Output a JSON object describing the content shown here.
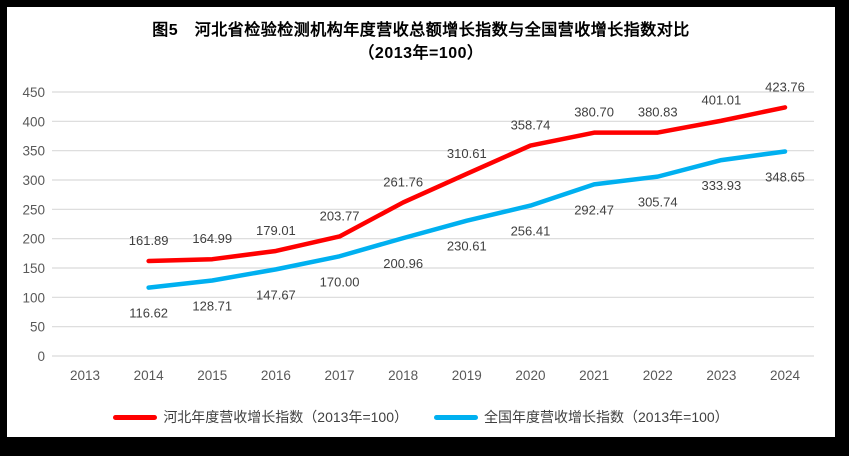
{
  "chart": {
    "title_line1": "图5　河北省检验检测机构年度营收总额增长指数与全国营收增长指数对比",
    "title_line2": "（2013年=100）"
  },
  "chart_data": {
    "type": "line",
    "title": "图5 河北省检验检测机构年度营收总额增长指数与全国营收增长指数对比（2013年=100）",
    "categories": [
      "2013",
      "2014",
      "2015",
      "2016",
      "2017",
      "2018",
      "2019",
      "2020",
      "2021",
      "2022",
      "2023",
      "2024"
    ],
    "series": [
      {
        "name": "河北年度营收增长指数（2013年=100）",
        "color": "#FF0000",
        "label_position": "above",
        "values": [
          null,
          161.89,
          164.99,
          179.01,
          203.77,
          261.76,
          310.61,
          358.74,
          380.7,
          380.83,
          401.01,
          423.76
        ],
        "labels": [
          "",
          "161.89",
          "164.99",
          "179.01",
          "203.77",
          "261.76",
          "310.61",
          "358.74",
          "380.70",
          "380.83",
          "401.01",
          "423.76"
        ]
      },
      {
        "name": "全国年度营收增长指数（2013年=100）",
        "color": "#00B0F0",
        "label_position": "below",
        "values": [
          null,
          116.62,
          128.71,
          147.67,
          170.0,
          200.96,
          230.61,
          256.41,
          292.47,
          305.74,
          333.93,
          348.65
        ],
        "labels": [
          "",
          "116.62",
          "128.71",
          "147.67",
          "170.00",
          "200.96",
          "230.61",
          "256.41",
          "292.47",
          "305.74",
          "333.93",
          "348.65"
        ]
      }
    ],
    "xlabel": "",
    "ylabel": "",
    "ylim": [
      0,
      450
    ],
    "ytick_step": 50,
    "grid": true,
    "legend_position": "bottom",
    "grid_color": "#D9D9D9",
    "axis_text_color": "#595959",
    "data_label_color": "#404040",
    "background_color": "#FFFFFF",
    "frame_color": "#000000"
  }
}
